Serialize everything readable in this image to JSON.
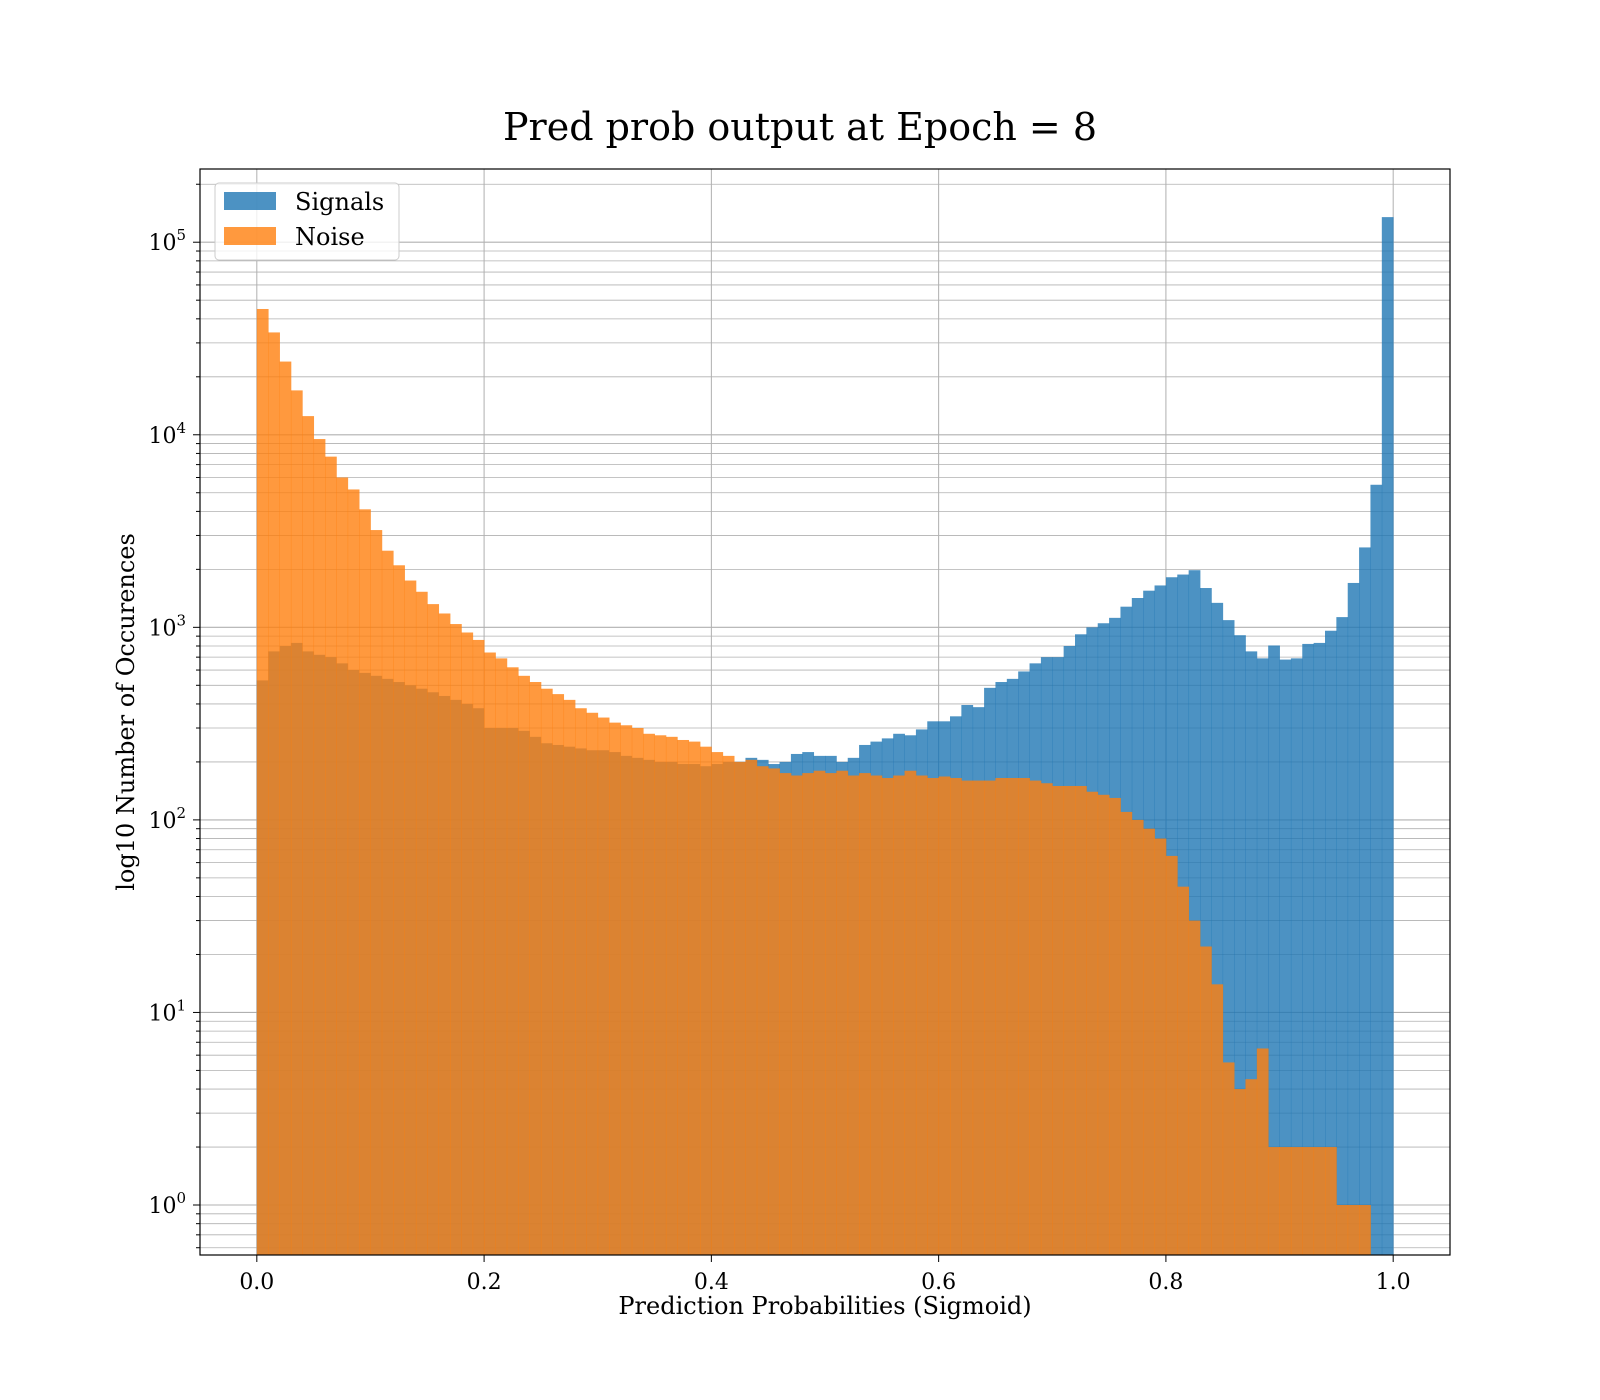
{
  "chart_data": {
    "type": "histogram",
    "title": "Pred prob output at Epoch = 8",
    "xlabel": "Prediction Probabilities (Sigmoid)",
    "ylabel": "log10 Number of Occurences",
    "xlim": [
      -0.05,
      1.05
    ],
    "ylim": [
      0.55,
      240000
    ],
    "yscale": "log",
    "grid": true,
    "legend_position": "upper-left",
    "bins": {
      "start": 0.0,
      "end": 1.0,
      "count": 100
    },
    "x_ticks": [
      {
        "value": 0.0,
        "label": "0.0"
      },
      {
        "value": 0.2,
        "label": "0.2"
      },
      {
        "value": 0.4,
        "label": "0.4"
      },
      {
        "value": 0.6,
        "label": "0.6"
      },
      {
        "value": 0.8,
        "label": "0.8"
      },
      {
        "value": 1.0,
        "label": "1.0"
      }
    ],
    "y_ticks": [
      {
        "value": 1,
        "base": "10",
        "exp": "0"
      },
      {
        "value": 10,
        "base": "10",
        "exp": "1"
      },
      {
        "value": 100,
        "base": "10",
        "exp": "2"
      },
      {
        "value": 1000,
        "base": "10",
        "exp": "3"
      },
      {
        "value": 10000,
        "base": "10",
        "exp": "4"
      },
      {
        "value": 100000,
        "base": "10",
        "exp": "5"
      }
    ],
    "series": [
      {
        "name": "Signals",
        "color": "#1f77b4",
        "values": [
          530,
          750,
          800,
          830,
          750,
          720,
          700,
          650,
          600,
          580,
          560,
          540,
          520,
          500,
          480,
          460,
          440,
          420,
          400,
          380,
          300,
          300,
          300,
          290,
          270,
          250,
          245,
          240,
          235,
          230,
          230,
          225,
          215,
          210,
          205,
          200,
          200,
          195,
          195,
          190,
          195,
          200,
          200,
          210,
          205,
          195,
          200,
          220,
          225,
          215,
          215,
          200,
          210,
          245,
          255,
          265,
          280,
          275,
          295,
          325,
          325,
          345,
          395,
          385,
          485,
          520,
          540,
          590,
          650,
          700,
          700,
          800,
          920,
          1000,
          1050,
          1120,
          1280,
          1420,
          1550,
          1650,
          1820,
          1880,
          1980,
          1600,
          1340,
          1090,
          910,
          750,
          690,
          805,
          680,
          690,
          820,
          830,
          960,
          1130,
          1700,
          2600,
          5500,
          135000
        ]
      },
      {
        "name": "Noise",
        "color": "#ff7f0e",
        "values": [
          45000,
          34000,
          24000,
          17000,
          12500,
          9500,
          7700,
          6000,
          5200,
          4100,
          3200,
          2500,
          2100,
          1750,
          1530,
          1320,
          1180,
          1040,
          940,
          860,
          740,
          690,
          620,
          560,
          520,
          480,
          450,
          420,
          380,
          360,
          340,
          320,
          310,
          300,
          280,
          275,
          270,
          260,
          255,
          240,
          225,
          215,
          200,
          205,
          190,
          185,
          175,
          170,
          175,
          180,
          175,
          180,
          170,
          175,
          170,
          165,
          170,
          180,
          170,
          165,
          168,
          165,
          160,
          160,
          160,
          165,
          165,
          165,
          160,
          155,
          150,
          150,
          150,
          140,
          135,
          130,
          110,
          100,
          90,
          80,
          65,
          45,
          30,
          22,
          14,
          5.5,
          4,
          4.5,
          6.5,
          2,
          2,
          2,
          2,
          2,
          2,
          1,
          1,
          1,
          0.5,
          0.5
        ]
      }
    ]
  }
}
